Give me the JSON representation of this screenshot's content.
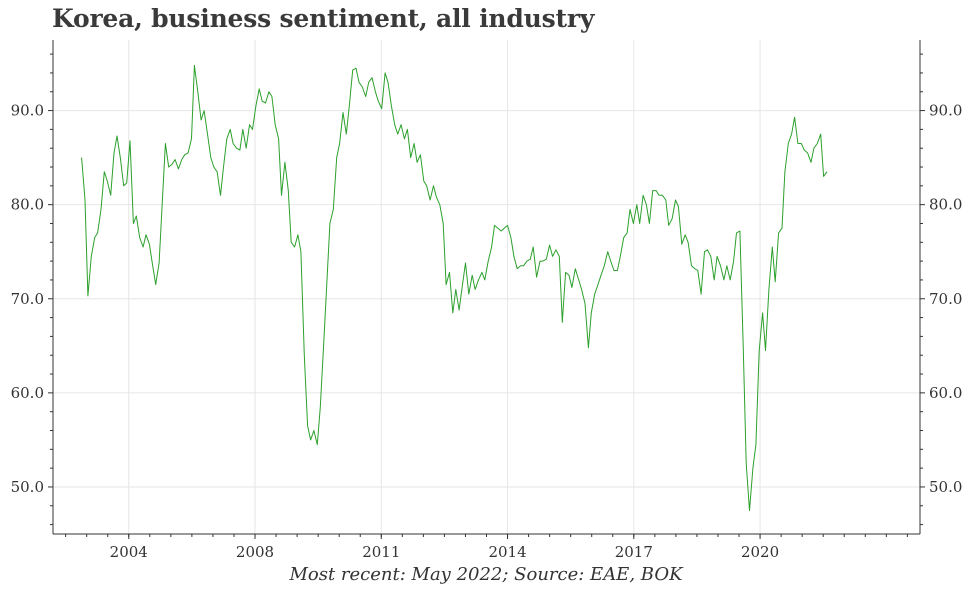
{
  "chart_data": {
    "type": "line",
    "title": "Korea, business sentiment, all industry",
    "caption": "Most recent: May 2022; Source: EAE, BOK",
    "xlabel": "",
    "ylabel": "",
    "grid": true,
    "x_range": [
      2002.2,
      2022.8
    ],
    "ylim": [
      45.0,
      97.5
    ],
    "y_ticks": [
      {
        "value": 50,
        "label": "50.0"
      },
      {
        "value": 60,
        "label": "60.0"
      },
      {
        "value": 70,
        "label": "70.0"
      },
      {
        "value": 80,
        "label": "80.0"
      },
      {
        "value": 90,
        "label": "90.0"
      }
    ],
    "x_ticks": [
      {
        "value": 2004.0,
        "label": "2004"
      },
      {
        "value": 2007.0,
        "label": "2008"
      },
      {
        "value": 2010.0,
        "label": "2011"
      },
      {
        "value": 2013.0,
        "label": "2014"
      },
      {
        "value": 2016.0,
        "label": "2017"
      },
      {
        "value": 2019.0,
        "label": "2020"
      }
    ],
    "series": [
      {
        "name": "Business sentiment, all industry",
        "color": "#2ca02c",
        "points": [
          [
            2002.88,
            85.0
          ],
          [
            2002.96,
            80.5
          ],
          [
            2003.03,
            70.3
          ],
          [
            2003.11,
            74.5
          ],
          [
            2003.19,
            76.5
          ],
          [
            2003.26,
            77.0
          ],
          [
            2003.34,
            79.5
          ],
          [
            2003.42,
            83.5
          ],
          [
            2003.49,
            82.5
          ],
          [
            2003.57,
            81.0
          ],
          [
            2003.65,
            85.5
          ],
          [
            2003.72,
            87.3
          ],
          [
            2003.8,
            85.0
          ],
          [
            2003.88,
            82.0
          ],
          [
            2003.95,
            82.3
          ],
          [
            2004.03,
            86.8
          ],
          [
            2004.11,
            78.0
          ],
          [
            2004.18,
            78.8
          ],
          [
            2004.26,
            76.5
          ],
          [
            2004.34,
            75.5
          ],
          [
            2004.41,
            76.8
          ],
          [
            2004.49,
            75.8
          ],
          [
            2004.57,
            73.5
          ],
          [
            2004.64,
            71.5
          ],
          [
            2004.72,
            73.8
          ],
          [
            2004.8,
            80.5
          ],
          [
            2004.87,
            86.5
          ],
          [
            2004.95,
            84.0
          ],
          [
            2005.03,
            84.3
          ],
          [
            2005.1,
            84.8
          ],
          [
            2005.18,
            83.8
          ],
          [
            2005.26,
            84.8
          ],
          [
            2005.33,
            85.3
          ],
          [
            2005.41,
            85.5
          ],
          [
            2005.49,
            87.0
          ],
          [
            2005.56,
            94.8
          ],
          [
            2005.64,
            92.0
          ],
          [
            2005.72,
            89.0
          ],
          [
            2005.79,
            90.0
          ],
          [
            2005.87,
            87.5
          ],
          [
            2005.95,
            85.0
          ],
          [
            2006.02,
            84.0
          ],
          [
            2006.1,
            83.5
          ],
          [
            2006.18,
            81.0
          ],
          [
            2006.25,
            84.0
          ],
          [
            2006.33,
            87.0
          ],
          [
            2006.41,
            88.0
          ],
          [
            2006.48,
            86.5
          ],
          [
            2006.56,
            86.0
          ],
          [
            2006.64,
            85.8
          ],
          [
            2006.71,
            88.0
          ],
          [
            2006.79,
            86.0
          ],
          [
            2006.87,
            88.5
          ],
          [
            2006.94,
            88.0
          ],
          [
            2007.02,
            90.5
          ],
          [
            2007.1,
            92.3
          ],
          [
            2007.17,
            91.0
          ],
          [
            2007.25,
            90.8
          ],
          [
            2007.33,
            92.0
          ],
          [
            2007.4,
            91.5
          ],
          [
            2007.48,
            88.5
          ],
          [
            2007.56,
            87.0
          ],
          [
            2007.63,
            81.0
          ],
          [
            2007.71,
            84.5
          ],
          [
            2007.79,
            81.5
          ],
          [
            2007.86,
            76.0
          ],
          [
            2007.94,
            75.5
          ],
          [
            2008.02,
            76.8
          ],
          [
            2008.09,
            75.0
          ],
          [
            2008.17,
            64.0
          ],
          [
            2008.25,
            56.5
          ],
          [
            2008.32,
            55.0
          ],
          [
            2008.4,
            56.0
          ],
          [
            2008.48,
            54.5
          ],
          [
            2008.55,
            58.5
          ],
          [
            2008.63,
            65.0
          ],
          [
            2008.71,
            72.0
          ],
          [
            2008.78,
            78.0
          ],
          [
            2008.86,
            79.5
          ],
          [
            2008.94,
            85.0
          ],
          [
            2009.01,
            86.5
          ],
          [
            2009.09,
            89.8
          ],
          [
            2009.17,
            87.5
          ],
          [
            2009.24,
            90.5
          ],
          [
            2009.32,
            94.3
          ],
          [
            2009.4,
            94.5
          ],
          [
            2009.47,
            93.0
          ],
          [
            2009.55,
            92.5
          ],
          [
            2009.63,
            91.5
          ],
          [
            2009.7,
            93.0
          ],
          [
            2009.78,
            93.5
          ],
          [
            2009.86,
            92.0
          ],
          [
            2009.93,
            91.0
          ],
          [
            2010.01,
            90.2
          ],
          [
            2010.09,
            94.0
          ],
          [
            2010.16,
            93.0
          ],
          [
            2010.24,
            90.5
          ],
          [
            2010.32,
            88.5
          ],
          [
            2010.39,
            87.5
          ],
          [
            2010.47,
            88.5
          ],
          [
            2010.55,
            87.0
          ],
          [
            2010.62,
            88.0
          ],
          [
            2010.7,
            85.0
          ],
          [
            2010.78,
            86.5
          ],
          [
            2010.85,
            84.5
          ],
          [
            2010.93,
            85.3
          ],
          [
            2011.01,
            82.5
          ],
          [
            2011.08,
            82.0
          ],
          [
            2011.16,
            80.5
          ],
          [
            2011.24,
            82.0
          ],
          [
            2011.31,
            80.8
          ],
          [
            2011.39,
            80.0
          ],
          [
            2011.47,
            78.0
          ],
          [
            2011.54,
            71.5
          ],
          [
            2011.62,
            72.8
          ],
          [
            2011.7,
            68.5
          ],
          [
            2011.77,
            71.0
          ],
          [
            2011.85,
            68.8
          ],
          [
            2011.93,
            71.5
          ],
          [
            2012.0,
            73.8
          ],
          [
            2012.08,
            70.5
          ],
          [
            2012.16,
            72.5
          ],
          [
            2012.23,
            71.0
          ],
          [
            2012.31,
            72.0
          ],
          [
            2012.39,
            72.8
          ],
          [
            2012.46,
            72.0
          ],
          [
            2012.54,
            74.0
          ],
          [
            2012.62,
            75.5
          ],
          [
            2012.69,
            77.8
          ],
          [
            2012.77,
            77.5
          ],
          [
            2012.85,
            77.2
          ],
          [
            2012.92,
            77.5
          ],
          [
            2013.0,
            77.8
          ],
          [
            2013.08,
            76.5
          ],
          [
            2013.15,
            74.5
          ],
          [
            2013.23,
            73.2
          ],
          [
            2013.31,
            73.5
          ],
          [
            2013.38,
            73.5
          ],
          [
            2013.46,
            74.0
          ],
          [
            2013.54,
            74.2
          ],
          [
            2013.61,
            75.5
          ],
          [
            2013.69,
            72.3
          ],
          [
            2013.77,
            74.0
          ],
          [
            2013.84,
            74.0
          ],
          [
            2013.92,
            74.2
          ],
          [
            2014.0,
            75.7
          ],
          [
            2014.07,
            74.5
          ],
          [
            2014.15,
            75.2
          ],
          [
            2014.23,
            74.5
          ],
          [
            2014.3,
            67.5
          ],
          [
            2014.38,
            72.8
          ],
          [
            2014.46,
            72.5
          ],
          [
            2014.53,
            71.2
          ],
          [
            2014.61,
            73.2
          ],
          [
            2014.69,
            72.0
          ],
          [
            2014.76,
            71.0
          ],
          [
            2014.84,
            69.5
          ],
          [
            2014.92,
            64.8
          ],
          [
            2014.99,
            68.5
          ],
          [
            2015.07,
            70.5
          ],
          [
            2015.15,
            71.5
          ],
          [
            2015.22,
            72.5
          ],
          [
            2015.3,
            73.5
          ],
          [
            2015.38,
            75.0
          ],
          [
            2015.45,
            74.0
          ],
          [
            2015.53,
            73.0
          ],
          [
            2015.61,
            73.0
          ],
          [
            2015.68,
            74.5
          ],
          [
            2015.76,
            76.5
          ],
          [
            2015.84,
            77.0
          ],
          [
            2015.91,
            79.5
          ],
          [
            2015.99,
            78.0
          ],
          [
            2016.07,
            80.0
          ],
          [
            2016.14,
            78.0
          ],
          [
            2016.22,
            81.0
          ],
          [
            2016.3,
            80.0
          ],
          [
            2016.37,
            78.0
          ],
          [
            2016.45,
            81.5
          ],
          [
            2016.53,
            81.5
          ],
          [
            2016.6,
            81.0
          ],
          [
            2016.68,
            81.0
          ],
          [
            2016.76,
            80.5
          ],
          [
            2016.83,
            77.8
          ],
          [
            2016.91,
            78.5
          ],
          [
            2016.99,
            80.5
          ],
          [
            2017.06,
            79.8
          ],
          [
            2017.14,
            75.8
          ],
          [
            2017.22,
            76.8
          ],
          [
            2017.29,
            76.0
          ],
          [
            2017.37,
            73.5
          ],
          [
            2017.45,
            73.2
          ],
          [
            2017.52,
            73.0
          ],
          [
            2017.6,
            70.5
          ],
          [
            2017.68,
            75.0
          ],
          [
            2017.75,
            75.2
          ],
          [
            2017.83,
            74.5
          ],
          [
            2017.91,
            72.0
          ],
          [
            2017.98,
            74.5
          ],
          [
            2018.06,
            73.5
          ],
          [
            2018.14,
            72.0
          ],
          [
            2018.21,
            73.5
          ],
          [
            2018.29,
            72.0
          ],
          [
            2018.37,
            74.0
          ],
          [
            2018.44,
            77.0
          ],
          [
            2018.52,
            77.2
          ],
          [
            2018.6,
            65.0
          ],
          [
            2018.67,
            52.5
          ],
          [
            2018.75,
            47.5
          ],
          [
            2018.83,
            52.0
          ],
          [
            2018.9,
            54.5
          ],
          [
            2018.98,
            64.5
          ],
          [
            2019.06,
            68.5
          ],
          [
            2019.13,
            64.5
          ],
          [
            2019.21,
            71.0
          ],
          [
            2019.29,
            75.5
          ],
          [
            2019.36,
            71.8
          ],
          [
            2019.44,
            77.0
          ],
          [
            2019.52,
            77.5
          ],
          [
            2019.59,
            83.5
          ],
          [
            2019.67,
            86.5
          ],
          [
            2019.75,
            87.5
          ],
          [
            2019.82,
            89.3
          ],
          [
            2019.9,
            86.5
          ],
          [
            2019.98,
            86.5
          ],
          [
            2020.05,
            85.8
          ],
          [
            2020.13,
            85.5
          ],
          [
            2020.21,
            84.5
          ],
          [
            2020.28,
            86.0
          ],
          [
            2020.36,
            86.5
          ],
          [
            2020.44,
            87.5
          ],
          [
            2020.51,
            83.0
          ],
          [
            2020.59,
            83.5
          ]
        ]
      }
    ]
  }
}
